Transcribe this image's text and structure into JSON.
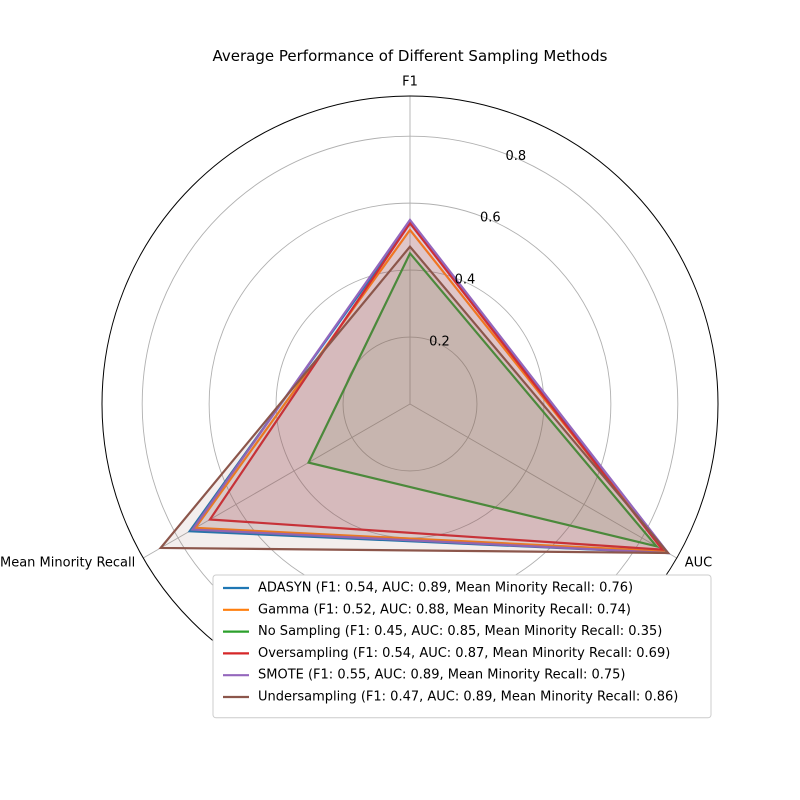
{
  "chart_data": {
    "type": "radar",
    "title": "Average Performance of Different Sampling Methods",
    "axes": [
      "F1",
      "AUC",
      "Mean Minority Recall"
    ],
    "rlim": [
      0,
      0.92
    ],
    "rticks": [
      0.2,
      0.4,
      0.6,
      0.8
    ],
    "rtick_labels": [
      "0.2",
      "0.4",
      "0.6",
      "0.8"
    ],
    "grid": true,
    "legend_position": "lower-right",
    "series": [
      {
        "name": "ADASYN (F1: 0.54, AUC: 0.89, Mean Minority Recall: 0.76)",
        "values": [
          0.54,
          0.89,
          0.76
        ],
        "color": "#1f77b4"
      },
      {
        "name": "Gamma (F1: 0.52, AUC: 0.88, Mean Minority Recall: 0.74)",
        "values": [
          0.52,
          0.88,
          0.74
        ],
        "color": "#ff7f0e"
      },
      {
        "name": "No Sampling (F1: 0.45, AUC: 0.85, Mean Minority Recall: 0.35)",
        "values": [
          0.45,
          0.85,
          0.35
        ],
        "color": "#2ca02c"
      },
      {
        "name": "Oversampling (F1: 0.54, AUC: 0.87, Mean Minority Recall: 0.69)",
        "values": [
          0.54,
          0.87,
          0.69
        ],
        "color": "#d62728"
      },
      {
        "name": "SMOTE (F1: 0.55, AUC: 0.89, Mean Minority Recall: 0.75)",
        "values": [
          0.55,
          0.89,
          0.75
        ],
        "color": "#9467bd"
      },
      {
        "name": "Undersampling (F1: 0.47, AUC: 0.89, Mean Minority Recall: 0.86)",
        "values": [
          0.47,
          0.89,
          0.86
        ],
        "color": "#8c564b"
      }
    ]
  }
}
